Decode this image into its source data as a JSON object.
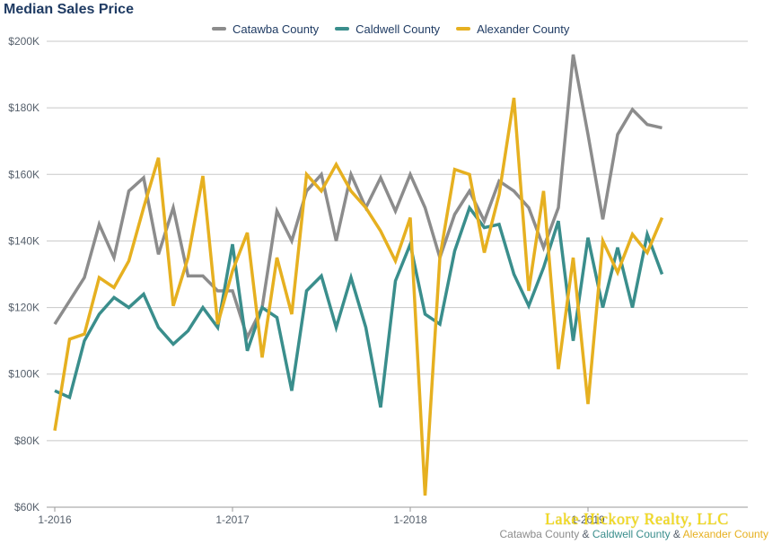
{
  "chart_data": {
    "type": "line",
    "title": "Median Sales Price",
    "xlabel": "",
    "ylabel": "",
    "ylim": [
      60000,
      200000
    ],
    "yticks": [
      60000,
      80000,
      100000,
      120000,
      140000,
      160000,
      180000,
      200000
    ],
    "ytick_labels": [
      "$60K",
      "$80K",
      "$100K",
      "$120K",
      "$140K",
      "$160K",
      "$180K",
      "$200K"
    ],
    "xticks": [
      0,
      12,
      24,
      36
    ],
    "xtick_labels": [
      "1-2016",
      "1-2017",
      "1-2018",
      "1-2019"
    ],
    "grid": true,
    "legend_position": "top",
    "series": [
      {
        "name": "Catawba County",
        "color": "#8c8c8c",
        "values": [
          115000,
          122000,
          129000,
          145000,
          135000,
          155000,
          159000,
          136000,
          150000,
          129500,
          129500,
          125000,
          125000,
          111000,
          120000,
          149000,
          140000,
          155000,
          160000,
          140000,
          160000,
          150000,
          159000,
          149000,
          160000,
          150000,
          135000,
          148000,
          155000,
          146000,
          158000,
          155000,
          150000,
          138000,
          150000,
          196000,
          172000,
          146500,
          172000,
          179500,
          175000,
          174000
        ]
      },
      {
        "name": "Caldwell County",
        "color": "#3a8e8c",
        "values": [
          95000,
          93000,
          110000,
          118000,
          123000,
          120000,
          124000,
          114000,
          109000,
          113000,
          120000,
          114000,
          139000,
          107000,
          120000,
          117000,
          95000,
          125000,
          129500,
          114000,
          129000,
          114000,
          90000,
          128000,
          139000,
          118000,
          115000,
          137000,
          150000,
          144000,
          145000,
          130000,
          120500,
          132000,
          146000,
          110000,
          141000,
          120000,
          138000,
          120000,
          142000,
          130000
        ]
      },
      {
        "name": "Alexander County",
        "color": "#e6b020",
        "values": [
          83000,
          110500,
          112000,
          129000,
          126000,
          134000,
          150000,
          165000,
          120500,
          135000,
          159500,
          115000,
          131000,
          142500,
          105000,
          135000,
          118000,
          160000,
          155000,
          163000,
          155000,
          150000,
          143000,
          134000,
          147000,
          63500,
          135000,
          161500,
          160000,
          136500,
          154000,
          183000,
          125000,
          155000,
          101500,
          135000,
          91000,
          140000,
          130500,
          142000,
          136500,
          147000
        ]
      }
    ]
  },
  "footer": {
    "watermark": "Lake Hickory Realty, LLC",
    "source_parts": [
      {
        "text": "Catawba County",
        "color": "#8c8c8c"
      },
      {
        "text": " & ",
        "color": "#555f6b"
      },
      {
        "text": "Caldwell County",
        "color": "#3a8e8c"
      },
      {
        "text": " & ",
        "color": "#555f6b"
      },
      {
        "text": "Alexander County",
        "color": "#e6b020"
      }
    ]
  }
}
